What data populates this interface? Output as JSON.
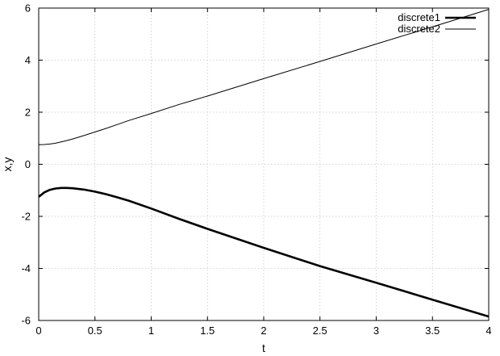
{
  "chart_data": {
    "type": "line",
    "title": "",
    "xlabel": "t",
    "ylabel": "x,y",
    "xlim": [
      0,
      4
    ],
    "ylim": [
      -6,
      6
    ],
    "xticks": [
      0,
      0.5,
      1,
      1.5,
      2,
      2.5,
      3,
      3.5,
      4
    ],
    "xtick_labels": [
      "0",
      "0.5",
      "1",
      "1.5",
      "2",
      "2.5",
      "3",
      "3.5",
      "4"
    ],
    "yticks": [
      -6,
      -4,
      -2,
      0,
      2,
      4,
      6
    ],
    "ytick_labels": [
      "-6",
      "-4",
      "-2",
      "0",
      "2",
      "4",
      "6"
    ],
    "grid": true,
    "legend_position": "top-right",
    "series": [
      {
        "name": "discrete1",
        "line_style": "thick",
        "color": "#000000",
        "x": [
          0,
          0.05,
          0.1,
          0.15,
          0.2,
          0.25,
          0.3,
          0.4,
          0.5,
          0.6,
          0.7,
          0.8,
          1.0,
          1.25,
          1.5,
          2.0,
          2.5,
          3.0,
          3.5,
          4.0
        ],
        "y": [
          -1.25,
          -1.08,
          -0.98,
          -0.93,
          -0.91,
          -0.91,
          -0.92,
          -0.97,
          -1.05,
          -1.15,
          -1.27,
          -1.4,
          -1.7,
          -2.1,
          -2.48,
          -3.21,
          -3.91,
          -4.55,
          -5.2,
          -5.85
        ]
      },
      {
        "name": "discrete2",
        "line_style": "thin",
        "color": "#000000",
        "x": [
          0,
          0.05,
          0.1,
          0.15,
          0.2,
          0.25,
          0.3,
          0.4,
          0.5,
          0.6,
          0.7,
          0.8,
          1.0,
          1.25,
          1.5,
          2.0,
          2.5,
          3.0,
          3.5,
          4.0
        ],
        "y": [
          0.75,
          0.76,
          0.78,
          0.81,
          0.86,
          0.91,
          0.97,
          1.1,
          1.24,
          1.38,
          1.53,
          1.68,
          1.95,
          2.3,
          2.62,
          3.29,
          3.95,
          4.62,
          5.28,
          5.95
        ]
      }
    ]
  }
}
